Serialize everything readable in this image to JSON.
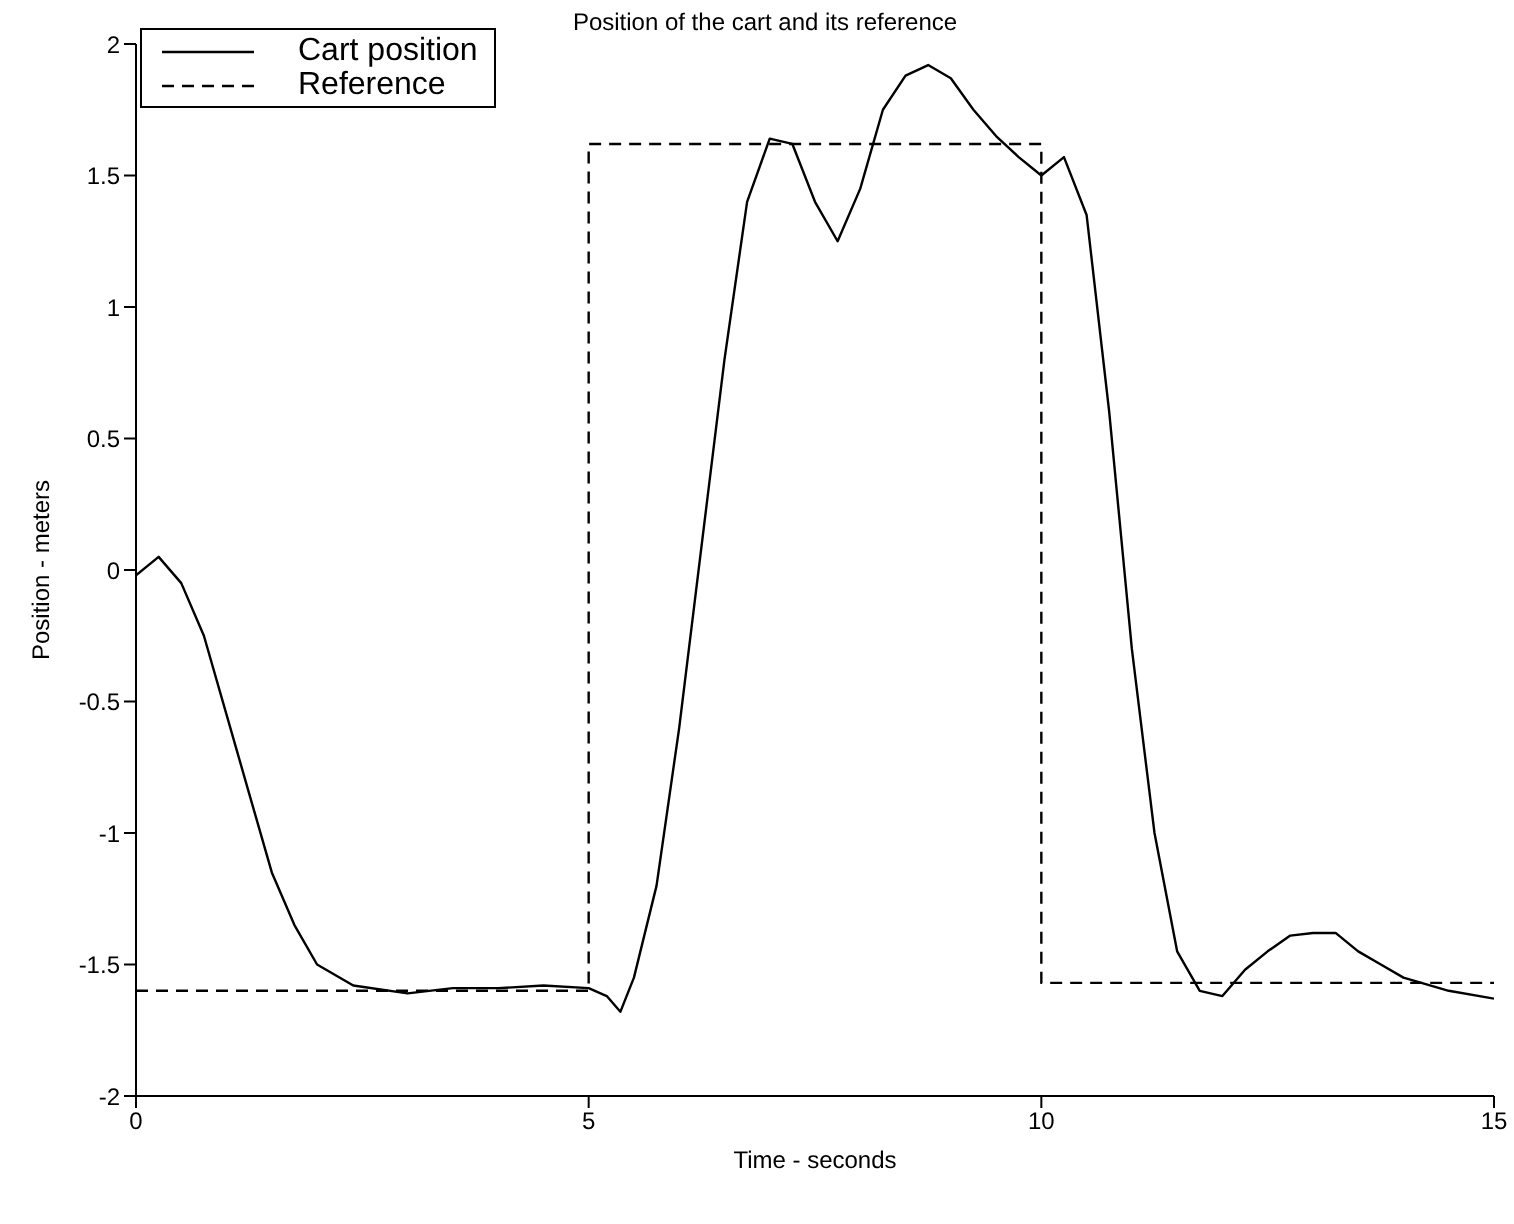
{
  "chart_data": {
    "type": "line",
    "title": "Position of the cart and its reference",
    "xlabel": "Time - seconds",
    "ylabel": "Position - meters",
    "xlim": [
      0,
      15
    ],
    "xticks": [
      0,
      5,
      10,
      15
    ],
    "ylim": [
      -2,
      2
    ],
    "yticks": [
      -2,
      -1.5,
      -1,
      -0.5,
      0,
      0.5,
      1,
      1.5,
      2
    ],
    "grid": false,
    "legend": "top left",
    "marker": "none",
    "series": [
      {
        "name": "Cart position",
        "color": "#000000",
        "line_style": "solid",
        "x": [
          0,
          0.25,
          0.5,
          0.75,
          1,
          1.25,
          1.5,
          1.75,
          2,
          2.4,
          3,
          3.5,
          4,
          4.5,
          5,
          5.2,
          5.35,
          5.5,
          5.75,
          6,
          6.25,
          6.5,
          6.75,
          7,
          7.25,
          7.5,
          7.75,
          8,
          8.25,
          8.5,
          8.75,
          9,
          9.25,
          9.5,
          9.75,
          10,
          10.25,
          10.5,
          10.75,
          11,
          11.25,
          11.5,
          11.75,
          12,
          12.25,
          12.5,
          12.75,
          13,
          13.25,
          13.5,
          13.75,
          14,
          14.5,
          15
        ],
        "values": [
          -0.02,
          0.05,
          -0.05,
          -0.25,
          -0.55,
          -0.85,
          -1.15,
          -1.35,
          -1.5,
          -1.58,
          -1.61,
          -1.59,
          -1.59,
          -1.58,
          -1.59,
          -1.62,
          -1.68,
          -1.55,
          -1.2,
          -0.6,
          0.1,
          0.8,
          1.4,
          1.64,
          1.62,
          1.4,
          1.25,
          1.45,
          1.75,
          1.88,
          1.92,
          1.87,
          1.75,
          1.65,
          1.57,
          1.5,
          1.57,
          1.35,
          0.6,
          -0.3,
          -1,
          -1.45,
          -1.6,
          -1.62,
          -1.52,
          -1.45,
          -1.39,
          -1.38,
          -1.38,
          -1.45,
          -1.5,
          -1.55,
          -1.6,
          -1.63
        ]
      },
      {
        "name": "Reference",
        "color": "#000000",
        "line_style": "dashed",
        "x": [
          0,
          5,
          5,
          10,
          10,
          15
        ],
        "values": [
          -1.6,
          -1.6,
          1.62,
          1.62,
          -1.57,
          -1.57
        ]
      }
    ]
  }
}
